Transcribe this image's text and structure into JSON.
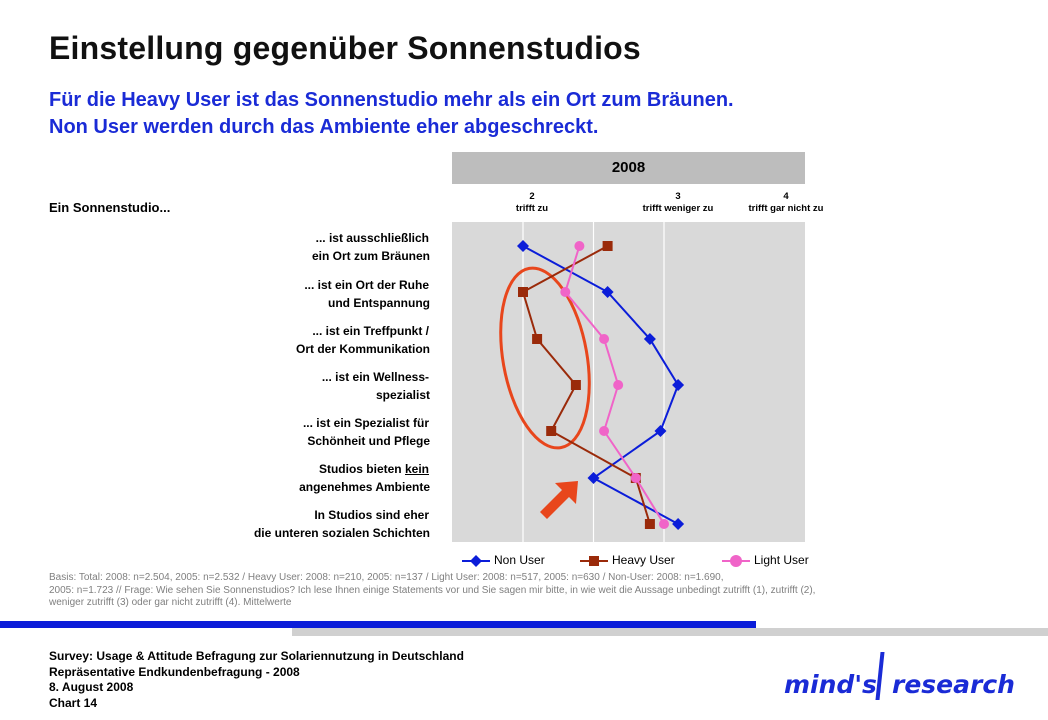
{
  "title": "Einstellung gegenüber Sonnenstudios",
  "subtitle": {
    "line1": "Für die Heavy User ist das Sonnenstudio mehr als ein Ort zum Bräunen.",
    "line2": "Non User werden durch das Ambiente eher abgeschreckt."
  },
  "section_label": "Ein Sonnenstudio...",
  "statements": [
    [
      "... ist ausschließlich",
      "ein Ort zum Bräunen"
    ],
    [
      "... ist ein Ort der Ruhe",
      "und Entspannung"
    ],
    [
      "... ist ein Treffpunkt /",
      "Ort der Kommunikation"
    ],
    [
      "... ist ein Wellness-",
      "spezialist"
    ],
    [
      "... ist ein Spezialist für",
      "Schönheit und Pflege"
    ],
    [
      "Studios bieten kein",
      "angenehmes Ambiente"
    ],
    [
      "In Studios sind eher",
      "die unteren sozialen Schichten"
    ]
  ],
  "basis": [
    "Basis: Total: 2008: n=2.504, 2005: n=2.532 / Heavy User: 2008: n=210, 2005: n=137 / Light User: 2008: n=517, 2005: n=630 / Non-User: 2008: n=1.690,",
    "2005: n=1.723 // Frage: Wie sehen Sie Sonnenstudios? Ich lese Ihnen einige Statements vor und Sie sagen mir bitte, in wie weit die Aussage unbedingt zutrifft (1), zutrifft (2),",
    "weniger zutrifft (3) oder gar nicht zutrifft (4). Mittelwerte"
  ],
  "footer": {
    "line1": "Survey: Usage & Attitude Befragung zur Solariennutzung in Deutschland",
    "line2": "Repräsentative Endkundenbefragung - 2008",
    "line3": "8. August 2008",
    "line4": "Chart 14"
  },
  "logo": {
    "left": "mind's",
    "right": "research"
  },
  "colors": {
    "accent_blue": "#1a2bd6",
    "non_user": "#0b1dd9",
    "heavy_user": "#9a2a0a",
    "light_user": "#f064c8",
    "highlight_circle": "#e8461c",
    "arrow": "#e8461c",
    "plot_bg": "#d9d9d9"
  },
  "chart_data": {
    "type": "line",
    "orientation": "horizontal-values",
    "panel_title": "2008",
    "x_ticks": [
      {
        "value": 2,
        "label": "trifft zu"
      },
      {
        "value": 3,
        "label": "trifft weniger zu"
      },
      {
        "value": 4,
        "label": "trifft gar nicht zu"
      }
    ],
    "xlim": [
      1.0,
      4.0
    ],
    "series": [
      {
        "name": "Non User",
        "marker": "diamond",
        "values": [
          2.0,
          3.2,
          3.8,
          4.2,
          3.95,
          3.0,
          4.2
        ]
      },
      {
        "name": "Heavy User",
        "marker": "square",
        "values": [
          3.2,
          2.0,
          2.2,
          2.75,
          2.4,
          3.6,
          3.8
        ]
      },
      {
        "name": "Light User",
        "marker": "circle",
        "values": [
          2.8,
          2.6,
          3.15,
          3.35,
          3.15,
          3.6,
          4.0
        ]
      }
    ],
    "grid": true,
    "legend_placement": "bottom"
  }
}
